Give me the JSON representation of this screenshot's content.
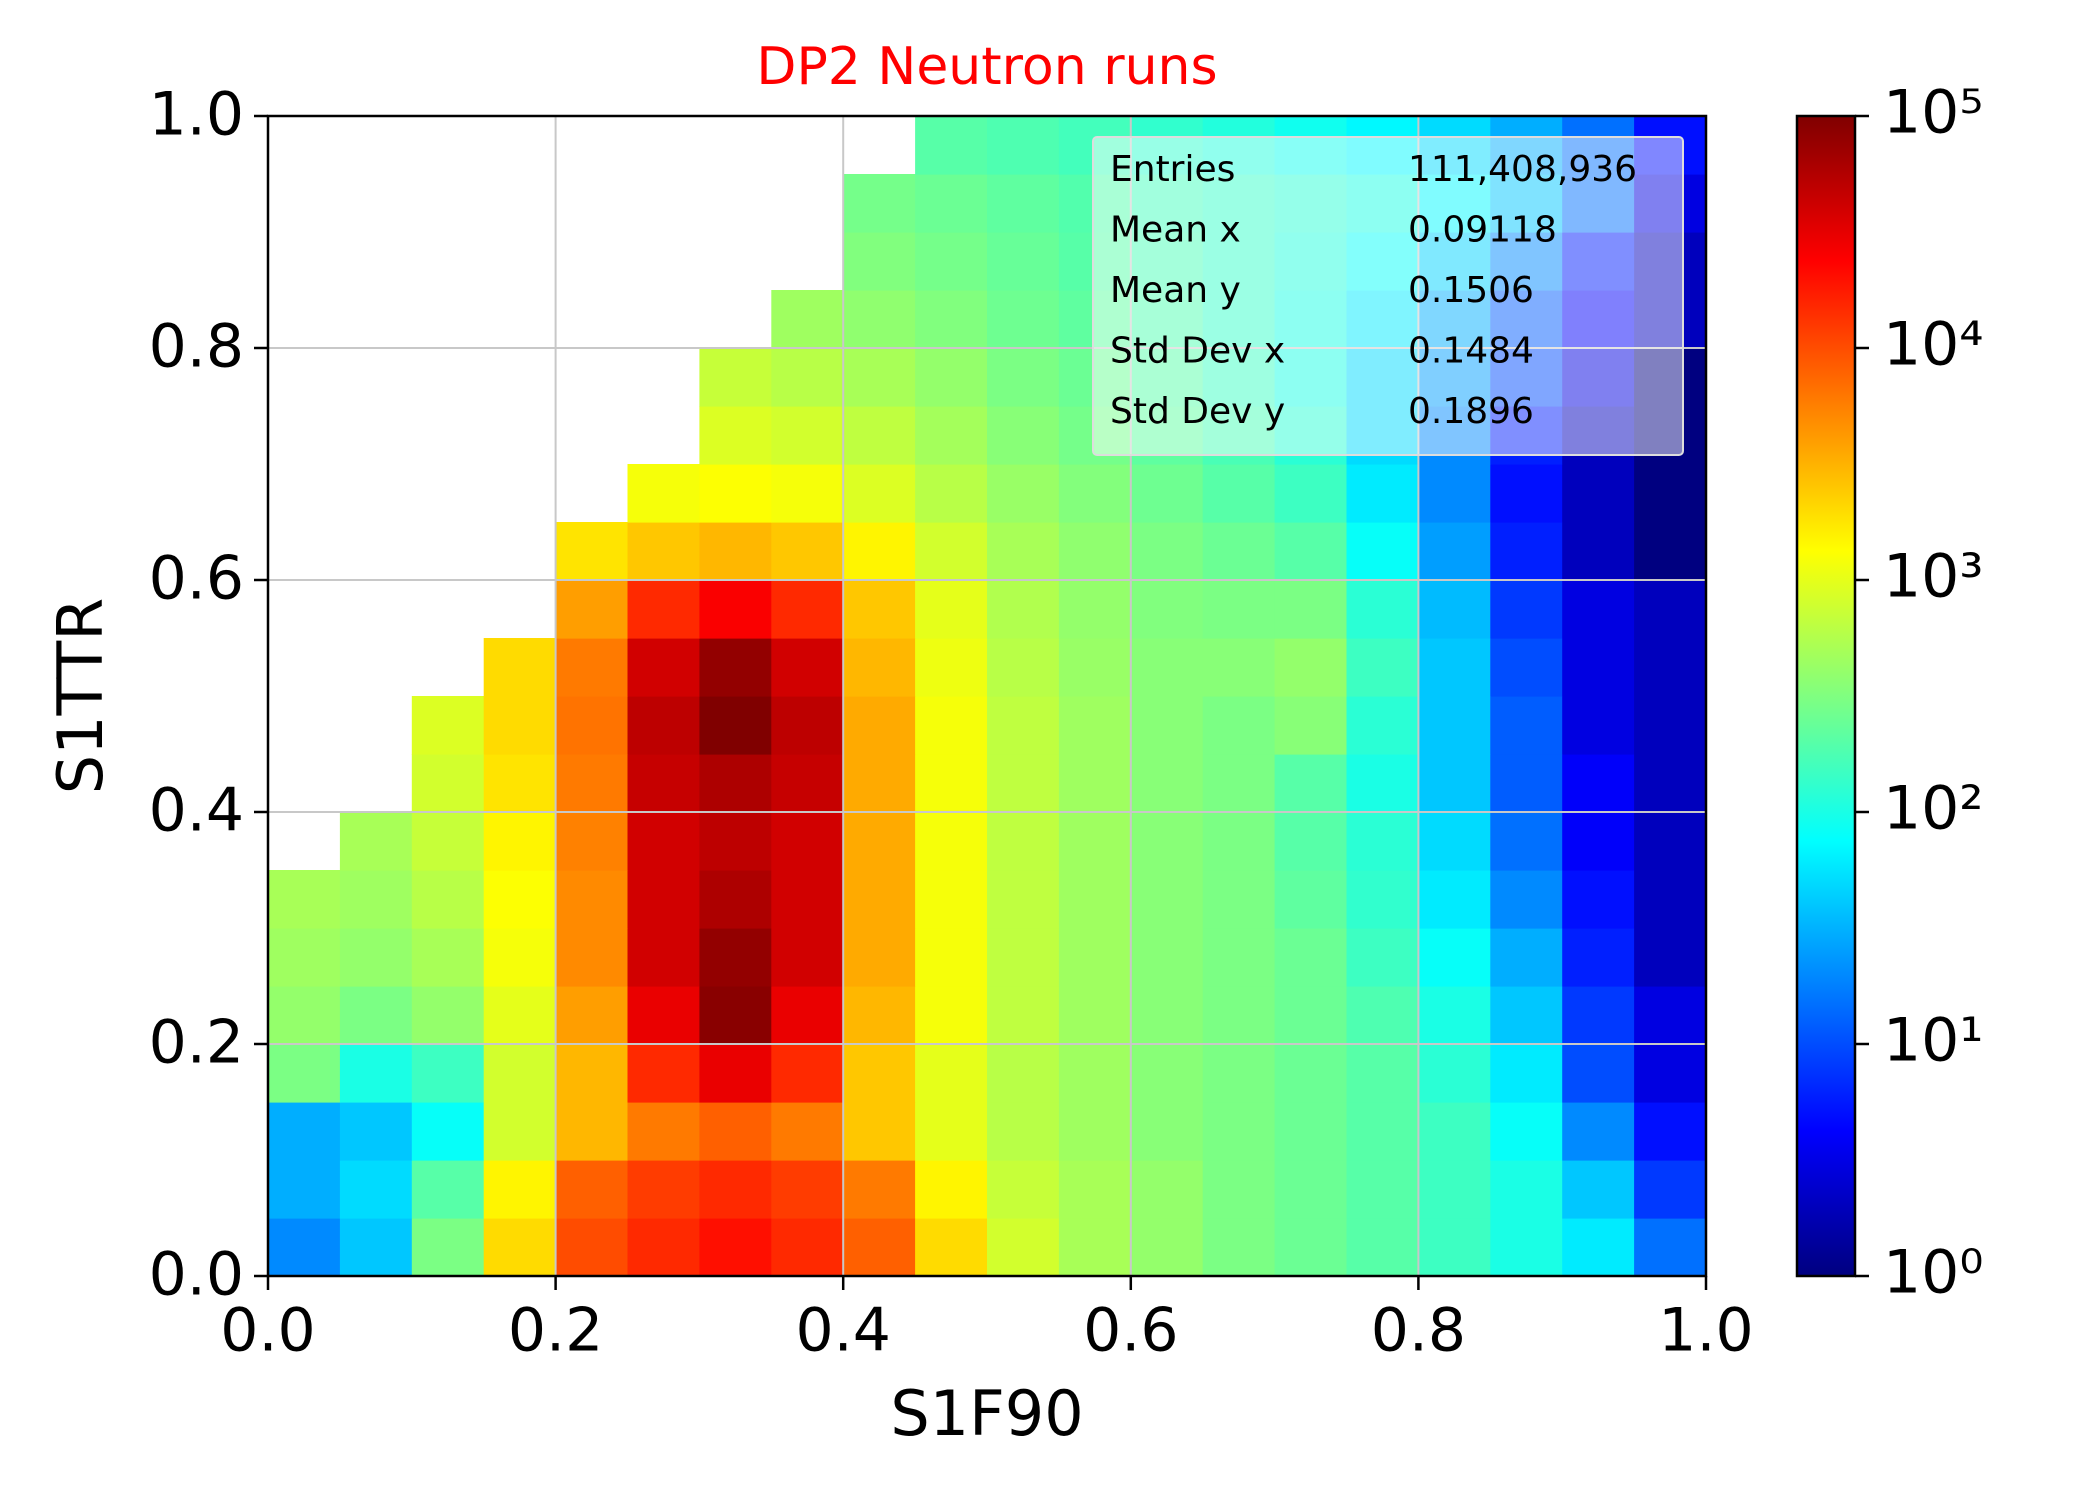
{
  "chart_data": {
    "type": "heatmap",
    "title": "DP2 Neutron runs",
    "title_color": "#ff0000",
    "x_label": "S1F90",
    "y_label": "S1TTR",
    "colormap": "jet",
    "color_log_scale": true,
    "grid": true,
    "xlim": [
      0.0,
      1.0
    ],
    "ylim": [
      0.0,
      1.0
    ],
    "xticks": [
      {
        "value": 0,
        "label": "0.0"
      },
      0.2,
      0.4,
      0.6,
      0.8,
      {
        "value": 1,
        "label": "1.0"
      }
    ],
    "yticks": [
      {
        "value": 0,
        "label": "0.0"
      },
      0.2,
      0.4,
      0.6,
      0.8,
      {
        "value": 1,
        "label": "1.0"
      }
    ],
    "clim": [
      1,
      100000
    ],
    "cticks": [
      {
        "value": 1,
        "label": "10⁰"
      },
      {
        "value": 10,
        "label": "10¹"
      },
      {
        "value": 100,
        "label": "10²"
      },
      {
        "value": 1000,
        "label": "10³"
      },
      {
        "value": 10000,
        "label": "10⁴"
      },
      {
        "value": 100000,
        "label": "10⁵"
      }
    ],
    "xbins": [
      0,
      0.05,
      0.1,
      0.15,
      0.2,
      0.25,
      0.3,
      0.35,
      0.4,
      0.45,
      0.5,
      0.55,
      0.6,
      0.65,
      0.7,
      0.75,
      0.8,
      0.85,
      0.9,
      0.95,
      1.0
    ],
    "ybins": [
      0,
      0.05,
      0.1,
      0.15,
      0.2,
      0.25,
      0.3,
      0.35,
      0.4,
      0.45,
      0.5,
      0.55,
      0.6,
      0.65,
      0.7,
      0.75,
      0.8,
      0.85,
      0.9,
      0.95,
      1.0
    ],
    "z": [
      [
        20,
        40,
        300,
        2000,
        10000,
        15000,
        20000,
        15000,
        8000,
        2000,
        800,
        500,
        400,
        300,
        250,
        200,
        150,
        100,
        60,
        15
      ],
      [
        30,
        50,
        200,
        1500,
        8000,
        12000,
        15000,
        12000,
        6000,
        1500,
        700,
        500,
        400,
        300,
        250,
        200,
        150,
        100,
        40,
        8
      ],
      [
        30,
        40,
        80,
        800,
        3000,
        6000,
        8000,
        6000,
        2500,
        1000,
        600,
        450,
        350,
        300,
        250,
        200,
        150,
        80,
        20,
        5
      ],
      [
        300,
        100,
        150,
        800,
        3000,
        15000,
        30000,
        15000,
        2500,
        1000,
        600,
        450,
        350,
        300,
        250,
        200,
        120,
        60,
        10,
        3
      ],
      [
        400,
        300,
        400,
        1000,
        4000,
        30000,
        90000,
        30000,
        3000,
        1200,
        650,
        450,
        350,
        300,
        250,
        180,
        100,
        40,
        8,
        3
      ],
      [
        450,
        400,
        500,
        1200,
        5000,
        40000,
        80000,
        40000,
        3500,
        1200,
        650,
        450,
        350,
        300,
        250,
        150,
        80,
        30,
        6,
        2
      ],
      [
        500,
        450,
        600,
        1300,
        5000,
        40000,
        60000,
        40000,
        3500,
        1200,
        650,
        450,
        350,
        300,
        220,
        130,
        60,
        20,
        5,
        2
      ],
      [
        null,
        500,
        700,
        1500,
        5500,
        40000,
        50000,
        40000,
        3500,
        1200,
        650,
        450,
        350,
        300,
        200,
        120,
        50,
        15,
        4,
        2
      ],
      [
        null,
        null,
        800,
        1800,
        6000,
        45000,
        60000,
        45000,
        3500,
        1200,
        650,
        450,
        350,
        300,
        200,
        100,
        40,
        12,
        4,
        2
      ],
      [
        null,
        null,
        900,
        2000,
        6500,
        50000,
        100000,
        50000,
        3500,
        1200,
        650,
        450,
        350,
        300,
        350,
        120,
        40,
        12,
        3,
        2
      ],
      [
        null,
        null,
        null,
        2000,
        6000,
        40000,
        80000,
        40000,
        3000,
        1100,
        600,
        420,
        350,
        350,
        400,
        150,
        40,
        10,
        3,
        2
      ],
      [
        null,
        null,
        null,
        null,
        4000,
        15000,
        25000,
        15000,
        2500,
        1000,
        550,
        400,
        320,
        300,
        300,
        120,
        35,
        8,
        3,
        2
      ],
      [
        null,
        null,
        null,
        null,
        1800,
        2500,
        3000,
        2500,
        1500,
        800,
        500,
        380,
        300,
        250,
        200,
        80,
        25,
        6,
        2,
        1
      ],
      [
        null,
        null,
        null,
        null,
        null,
        1200,
        1300,
        1200,
        900,
        600,
        420,
        330,
        260,
        200,
        150,
        60,
        20,
        5,
        2,
        1
      ],
      [
        null,
        null,
        null,
        null,
        null,
        null,
        900,
        800,
        650,
        480,
        350,
        280,
        220,
        170,
        120,
        50,
        20,
        6,
        2,
        1
      ],
      [
        null,
        null,
        null,
        null,
        null,
        null,
        700,
        600,
        500,
        400,
        300,
        250,
        200,
        150,
        100,
        50,
        25,
        10,
        3,
        1
      ],
      [
        null,
        null,
        null,
        null,
        null,
        null,
        null,
        450,
        380,
        320,
        260,
        220,
        180,
        140,
        100,
        60,
        30,
        12,
        4,
        2
      ],
      [
        null,
        null,
        null,
        null,
        null,
        null,
        null,
        null,
        320,
        280,
        240,
        200,
        170,
        140,
        110,
        80,
        45,
        20,
        6,
        2
      ],
      [
        null,
        null,
        null,
        null,
        null,
        null,
        null,
        null,
        280,
        250,
        220,
        190,
        160,
        140,
        120,
        100,
        70,
        40,
        15,
        3
      ],
      [
        null,
        null,
        null,
        null,
        null,
        null,
        null,
        null,
        null,
        200,
        180,
        160,
        130,
        110,
        90,
        70,
        50,
        30,
        15,
        5
      ]
    ],
    "stats": [
      {
        "label": "Entries",
        "value": "111,408,936"
      },
      {
        "label": "Mean x",
        "value": "0.09118"
      },
      {
        "label": "Mean y",
        "value": "0.1506"
      },
      {
        "label": "Std Dev x",
        "value": "0.1484"
      },
      {
        "label": "Std Dev y",
        "value": "0.1896"
      }
    ]
  }
}
